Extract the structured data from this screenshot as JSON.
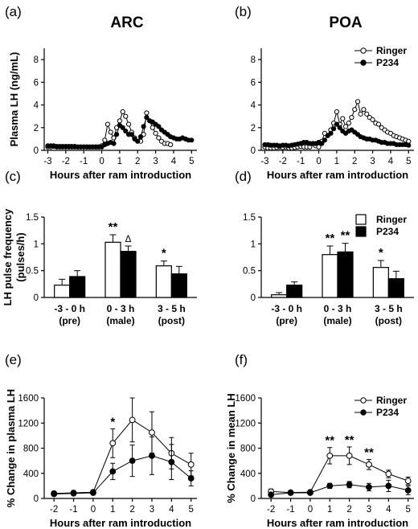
{
  "chart_data": [
    {
      "panel_label": "(a)",
      "title": "ARC",
      "type": "line",
      "xlabel": "Hours after ram introduction",
      "ylabel": "Plasma LH (ng/mL)",
      "xticks": [
        "-3",
        "-2",
        "-1",
        "0",
        "1",
        "2",
        "3",
        "4",
        "5"
      ],
      "yticks": [
        "0",
        "2",
        "4",
        "6",
        "8"
      ],
      "xlim": [
        -3.2,
        5.3
      ],
      "ylim": [
        0,
        9
      ],
      "series": [
        {
          "name": "Ringer",
          "marker": "open-circle",
          "x": [
            -3,
            -2.83,
            -2.67,
            -2.5,
            -2.33,
            -2.17,
            -2,
            -1.83,
            -1.67,
            -1.5,
            -1.33,
            -1.17,
            -1,
            -0.83,
            -0.67,
            -0.5,
            -0.33,
            -0.17,
            0,
            0.17,
            0.33,
            0.5,
            0.67,
            0.83,
            1,
            1.17,
            1.33,
            1.5,
            1.67,
            1.83,
            2,
            2.17,
            2.33,
            2.5,
            2.67,
            2.83,
            3,
            3.17,
            3.33,
            3.5,
            3.67,
            3.83,
            4,
            4.17,
            4.33,
            4.5,
            4.67,
            4.83,
            5
          ],
          "y": [
            0.3,
            0.3,
            0.35,
            0.3,
            0.3,
            0.3,
            0.3,
            0.3,
            0.3,
            0.3,
            0.3,
            0.3,
            0.3,
            0.3,
            0.3,
            0.3,
            0.3,
            0.3,
            0.4,
            0.9,
            2.3,
            1.6,
            1.1,
            2.0,
            2.6,
            3.4,
            3.0,
            2.3,
            1.6,
            1.1,
            0.8,
            0.8,
            1.4,
            3.3,
            2.6,
            2.0,
            1.5,
            1.1,
            0.8,
            0.6,
            0.6,
            0.5,
            null,
            null,
            null,
            null,
            null,
            null,
            null
          ]
        },
        {
          "name": "P234",
          "marker": "filled-circle",
          "x": [
            -3,
            -2.83,
            -2.67,
            -2.5,
            -2.33,
            -2.17,
            -2,
            -1.83,
            -1.67,
            -1.5,
            -1.33,
            -1.17,
            -1,
            -0.83,
            -0.67,
            -0.5,
            -0.33,
            -0.17,
            0,
            0.17,
            0.33,
            0.5,
            0.67,
            0.83,
            1,
            1.17,
            1.33,
            1.5,
            1.67,
            1.83,
            2,
            2.17,
            2.33,
            2.5,
            2.67,
            2.83,
            3,
            3.17,
            3.33,
            3.5,
            3.67,
            3.83,
            4,
            4.17,
            4.33,
            4.5,
            4.67,
            4.83,
            5
          ],
          "y": [
            0.4,
            0.4,
            0.4,
            0.35,
            0.35,
            0.35,
            0.35,
            0.35,
            0.35,
            0.35,
            0.3,
            0.3,
            0.3,
            0.3,
            0.3,
            0.3,
            0.3,
            0.3,
            0.3,
            0.5,
            0.6,
            0.7,
            0.6,
            1.4,
            2.2,
            2.0,
            1.7,
            1.4,
            1.4,
            1.0,
            0.8,
            1.2,
            2.1,
            2.9,
            2.6,
            2.5,
            2.3,
            2.1,
            1.8,
            1.6,
            1.4,
            1.2,
            1.1,
            1.0,
            1.0,
            1.1,
            1.0,
            0.9,
            0.9
          ]
        }
      ]
    },
    {
      "panel_label": "(b)",
      "title": "POA",
      "type": "line",
      "xlabel": "Hours after ram introduction",
      "xticks": [
        "-3",
        "-2",
        "-1",
        "0",
        "1",
        "2",
        "3",
        "4",
        "5"
      ],
      "yticks": [
        "0",
        "2",
        "4",
        "6",
        "8"
      ],
      "xlim": [
        -3.2,
        5.3
      ],
      "ylim": [
        0,
        9
      ],
      "legend": "top-right",
      "series": [
        {
          "name": "Ringer",
          "marker": "open-circle",
          "x": [
            -3,
            -2.83,
            -2.67,
            -2.5,
            -2.33,
            -2.17,
            -2,
            -1.83,
            -1.67,
            -1.5,
            -1.33,
            -1.17,
            -1,
            -0.83,
            -0.67,
            -0.5,
            -0.33,
            -0.17,
            0,
            0.17,
            0.33,
            0.5,
            0.67,
            0.83,
            1,
            1.17,
            1.33,
            1.5,
            1.67,
            1.83,
            2,
            2.17,
            2.33,
            2.5,
            2.67,
            2.83,
            3,
            3.17,
            3.33,
            3.5,
            3.67,
            3.83,
            4,
            4.17,
            4.33,
            4.5,
            4.67,
            4.83,
            5
          ],
          "y": [
            0.3,
            0.2,
            0.2,
            0.2,
            0.25,
            0.3,
            0.25,
            0.3,
            0.2,
            0.2,
            0.25,
            0.3,
            0.35,
            0.3,
            0.3,
            0.3,
            0.6,
            0.4,
            0.3,
            0.8,
            1.5,
            1.3,
            1.8,
            2.4,
            3.4,
            2.3,
            2.8,
            2.1,
            2.4,
            2.9,
            3.6,
            4.3,
            3.2,
            3.6,
            3.2,
            2.9,
            2.7,
            2.4,
            2.3,
            2.0,
            1.8,
            1.6,
            1.5,
            1.3,
            1.2,
            1.1,
            1.0,
            0.9,
            0.8
          ]
        },
        {
          "name": "P234",
          "marker": "filled-circle",
          "x": [
            -3,
            -2.83,
            -2.67,
            -2.5,
            -2.33,
            -2.17,
            -2,
            -1.83,
            -1.67,
            -1.5,
            -1.33,
            -1.17,
            -1,
            -0.83,
            -0.67,
            -0.5,
            -0.33,
            -0.17,
            0,
            0.17,
            0.33,
            0.5,
            0.67,
            0.83,
            1,
            1.17,
            1.33,
            1.5,
            1.67,
            1.83,
            2,
            2.17,
            2.33,
            2.5,
            2.67,
            2.83,
            3,
            3.17,
            3.33,
            3.5,
            3.67,
            3.83,
            4,
            4.17,
            4.33,
            4.5,
            4.67,
            4.83,
            5
          ],
          "y": [
            0.5,
            0.5,
            0.45,
            0.45,
            0.45,
            0.4,
            0.45,
            0.45,
            0.4,
            0.45,
            0.5,
            0.55,
            0.6,
            0.7,
            0.7,
            0.6,
            0.6,
            0.6,
            0.7,
            0.6,
            0.9,
            1.3,
            1.5,
            1.9,
            2.3,
            2.0,
            1.7,
            1.5,
            1.7,
            1.8,
            1.6,
            1.4,
            1.2,
            1.1,
            1.0,
            1.0,
            0.9,
            0.9,
            0.8,
            0.7,
            0.7,
            0.6,
            0.6,
            0.6,
            0.5,
            0.5,
            0.5,
            0.5,
            0.45
          ]
        }
      ]
    },
    {
      "panel_label": "(c)",
      "type": "bar",
      "ylabel": "LH pulse frequency (pulses/h)",
      "categories": [
        "-3 - 0 h",
        "0 - 3 h",
        "3 - 5 h"
      ],
      "category_sublabels": [
        "(pre)",
        "(male)",
        "(post)"
      ],
      "yticks": [
        "0",
        "0.5",
        "1",
        "1.5"
      ],
      "ylim": [
        0,
        1.5
      ],
      "series": [
        {
          "name": "Ringer",
          "fill": "white",
          "values": [
            0.23,
            1.03,
            0.59
          ],
          "errors": [
            0.11,
            0.14,
            0.09
          ]
        },
        {
          "name": "P234",
          "fill": "black",
          "values": [
            0.39,
            0.86,
            0.44
          ],
          "errors": [
            0.11,
            0.1,
            0.14
          ]
        }
      ],
      "annotations": [
        {
          "text": "**",
          "category": 1,
          "series": 0
        },
        {
          "text": "Δ",
          "category": 1,
          "series": 1
        },
        {
          "text": "*",
          "category": 2,
          "series": 0
        }
      ]
    },
    {
      "panel_label": "(d)",
      "type": "bar",
      "categories": [
        "-3 - 0 h",
        "0 - 3 h",
        "3 - 5 h"
      ],
      "category_sublabels": [
        "(pre)",
        "(male)",
        "(post)"
      ],
      "yticks": [
        "0",
        "0.5",
        "1",
        "1.5"
      ],
      "ylim": [
        0,
        1.5
      ],
      "legend": "top-right",
      "series": [
        {
          "name": "Ringer",
          "fill": "white",
          "values": [
            0.05,
            0.8,
            0.56
          ],
          "errors": [
            0.04,
            0.16,
            0.13
          ]
        },
        {
          "name": "P234",
          "fill": "black",
          "values": [
            0.23,
            0.85,
            0.35
          ],
          "errors": [
            0.06,
            0.16,
            0.14
          ]
        }
      ],
      "annotations": [
        {
          "text": "**",
          "category": 1,
          "series": 0
        },
        {
          "text": "**",
          "category": 1,
          "series": 1
        },
        {
          "text": "*",
          "category": 2,
          "series": 0
        }
      ]
    },
    {
      "panel_label": "(e)",
      "type": "line",
      "xlabel": "Hours after ram introduction",
      "ylabel": "% Change in plasma LH",
      "x": [
        -2,
        -1,
        0,
        1,
        2,
        3,
        4,
        5
      ],
      "xticks": [
        "-2",
        "-1",
        "0",
        "1",
        "2",
        "3",
        "4",
        "5"
      ],
      "yticks": [
        "0",
        "400",
        "800",
        "1200",
        "1600"
      ],
      "xlim": [
        -2.5,
        5.3
      ],
      "ylim": [
        0,
        1600
      ],
      "series": [
        {
          "name": "Ringer",
          "marker": "open-circle",
          "values": [
            80,
            90,
            100,
            880,
            1250,
            1050,
            720,
            540
          ],
          "errors": [
            30,
            30,
            30,
            230,
            350,
            330,
            250,
            180
          ]
        },
        {
          "name": "P234",
          "marker": "filled-circle",
          "values": [
            70,
            80,
            90,
            430,
            600,
            680,
            580,
            320
          ],
          "errors": [
            20,
            20,
            20,
            130,
            250,
            300,
            280,
            120
          ]
        }
      ],
      "annotations": [
        {
          "text": "*",
          "x": 1
        }
      ]
    },
    {
      "panel_label": "(f)",
      "type": "line",
      "xlabel": "Hours after ram introduction",
      "ylabel": "% Change in mean LH",
      "x": [
        -2,
        -1,
        0,
        1,
        2,
        3,
        4,
        5
      ],
      "xticks": [
        "-2",
        "-1",
        "0",
        "1",
        "2",
        "3",
        "4",
        "5"
      ],
      "yticks": [
        "0",
        "400",
        "800",
        "1200",
        "1600"
      ],
      "xlim": [
        -2.5,
        5.3
      ],
      "ylim": [
        0,
        1600
      ],
      "legend": "top-right",
      "series": [
        {
          "name": "Ringer",
          "marker": "open-circle",
          "values": [
            110,
            95,
            100,
            680,
            680,
            540,
            390,
            280
          ],
          "errors": [
            40,
            25,
            20,
            130,
            140,
            80,
            60,
            60
          ]
        },
        {
          "name": "P234",
          "marker": "filled-circle",
          "values": [
            60,
            90,
            90,
            200,
            220,
            180,
            200,
            130
          ],
          "errors": [
            30,
            20,
            20,
            40,
            50,
            60,
            90,
            70
          ]
        }
      ],
      "annotations": [
        {
          "text": "**",
          "x": 1
        },
        {
          "text": "**",
          "x": 2
        },
        {
          "text": "**",
          "x": 3
        }
      ]
    }
  ]
}
